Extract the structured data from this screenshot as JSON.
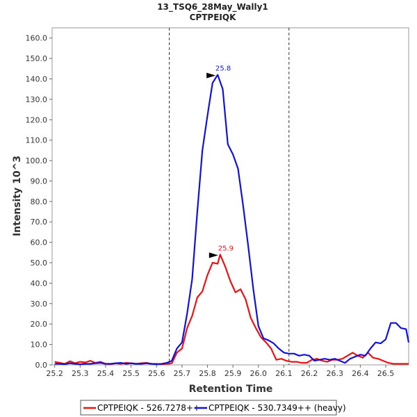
{
  "chart_data": {
    "type": "line",
    "title": "13_TSQ6_28May_Wally1",
    "subtitle": "CPTPEIQK",
    "xlabel": "Retention Time",
    "ylabel": "Intensity 10^3",
    "xlim": [
      25.19,
      26.59
    ],
    "ylim": [
      0,
      165
    ],
    "xticks": [
      "25.2",
      "25.3",
      "25.4",
      "25.5",
      "25.6",
      "25.7",
      "25.8",
      "25.9",
      "26.0",
      "26.1",
      "26.2",
      "26.3",
      "26.4",
      "26.5"
    ],
    "yticks": [
      "0.0",
      "10.0",
      "20.0",
      "30.0",
      "40.0",
      "50.0",
      "60.0",
      "70.0",
      "80.0",
      "90.0",
      "100.0",
      "110.0",
      "120.0",
      "130.0",
      "140.0",
      "150.0",
      "160.0"
    ],
    "integration_bounds": [
      25.65,
      26.12
    ],
    "legend_position": "bottom",
    "series": [
      {
        "name": "CPTPEIQK - 526.7278++",
        "color": "#ee1111",
        "peak_label": "25.9",
        "peak_rt": 25.85,
        "peak_value": 54,
        "x": [
          25.2,
          25.22,
          25.24,
          25.26,
          25.28,
          25.3,
          25.32,
          25.34,
          25.36,
          25.38,
          25.4,
          25.42,
          25.44,
          25.46,
          25.48,
          25.5,
          25.52,
          25.54,
          25.56,
          25.58,
          25.6,
          25.62,
          25.64,
          25.66,
          25.68,
          25.7,
          25.72,
          25.74,
          25.76,
          25.78,
          25.8,
          25.82,
          25.84,
          25.85,
          25.87,
          25.89,
          25.91,
          25.93,
          25.95,
          25.97,
          25.99,
          26.01,
          26.03,
          26.05,
          26.07,
          26.09,
          26.11,
          26.13,
          26.15,
          26.17,
          26.19,
          26.21,
          26.23,
          26.25,
          26.27,
          26.29,
          26.31,
          26.33,
          26.35,
          26.37,
          26.39,
          26.41,
          26.43,
          26.45,
          26.47,
          26.49,
          26.51,
          26.53,
          26.55,
          26.57,
          26.59
        ],
        "values": [
          1.5,
          1.0,
          0.5,
          1.8,
          0.8,
          1.5,
          1.2,
          2.0,
          1.0,
          1.5,
          0.5,
          0.3,
          0.8,
          0.5,
          1.0,
          0.8,
          0.5,
          0.8,
          1.0,
          0.5,
          0.5,
          0.3,
          0.5,
          0.8,
          6.0,
          8.0,
          18.0,
          24.0,
          33.0,
          36.0,
          44.0,
          50.0,
          49.5,
          54.0,
          48.0,
          41.0,
          35.5,
          37.0,
          32.0,
          23.0,
          18.0,
          13.5,
          11.0,
          8.0,
          2.5,
          3.0,
          2.0,
          1.5,
          1.5,
          1.0,
          1.0,
          2.5,
          3.0,
          2.0,
          1.5,
          2.5,
          2.5,
          3.0,
          4.5,
          6.0,
          4.5,
          3.5,
          6.0,
          3.5,
          3.0,
          2.0,
          1.0,
          0.5,
          0.5,
          0.5,
          0.5
        ]
      },
      {
        "name": "CPTPEIQK - 530.7349++ (heavy)",
        "color": "#1111dd",
        "peak_label": "25.8",
        "peak_rt": 25.84,
        "peak_value": 142,
        "x": [
          25.2,
          25.22,
          25.24,
          25.26,
          25.28,
          25.3,
          25.32,
          25.34,
          25.36,
          25.38,
          25.4,
          25.42,
          25.44,
          25.46,
          25.48,
          25.5,
          25.52,
          25.54,
          25.56,
          25.58,
          25.6,
          25.62,
          25.64,
          25.66,
          25.68,
          25.7,
          25.72,
          25.74,
          25.76,
          25.78,
          25.8,
          25.82,
          25.84,
          25.86,
          25.88,
          25.9,
          25.92,
          25.94,
          25.96,
          25.98,
          26.0,
          26.02,
          26.04,
          26.06,
          26.08,
          26.1,
          26.12,
          26.14,
          26.16,
          26.18,
          26.2,
          26.22,
          26.24,
          26.26,
          26.28,
          26.3,
          26.32,
          26.34,
          26.36,
          26.38,
          26.4,
          26.42,
          26.44,
          26.46,
          26.48,
          26.5,
          26.52,
          26.54,
          26.56,
          26.58,
          26.59
        ],
        "values": [
          0.5,
          0.5,
          0.3,
          0.8,
          0.5,
          0.3,
          0.5,
          0.5,
          0.8,
          1.0,
          0.5,
          0.5,
          0.8,
          1.0,
          0.5,
          0.8,
          0.5,
          0.5,
          0.8,
          0.5,
          0.3,
          0.5,
          1.0,
          2.0,
          8.0,
          11.0,
          25.0,
          42.0,
          75.0,
          105.0,
          122.0,
          138.0,
          142.0,
          135.0,
          108.0,
          103.0,
          96.0,
          78.0,
          58.0,
          37.0,
          19.0,
          13.0,
          12.0,
          10.5,
          8.0,
          6.0,
          5.5,
          5.5,
          4.5,
          5.0,
          4.5,
          2.0,
          2.5,
          3.0,
          2.5,
          3.0,
          2.0,
          1.0,
          3.0,
          4.0,
          5.0,
          4.5,
          8.0,
          11.0,
          10.5,
          12.5,
          20.5,
          20.5,
          18.0,
          17.5,
          11.0
        ]
      }
    ]
  }
}
